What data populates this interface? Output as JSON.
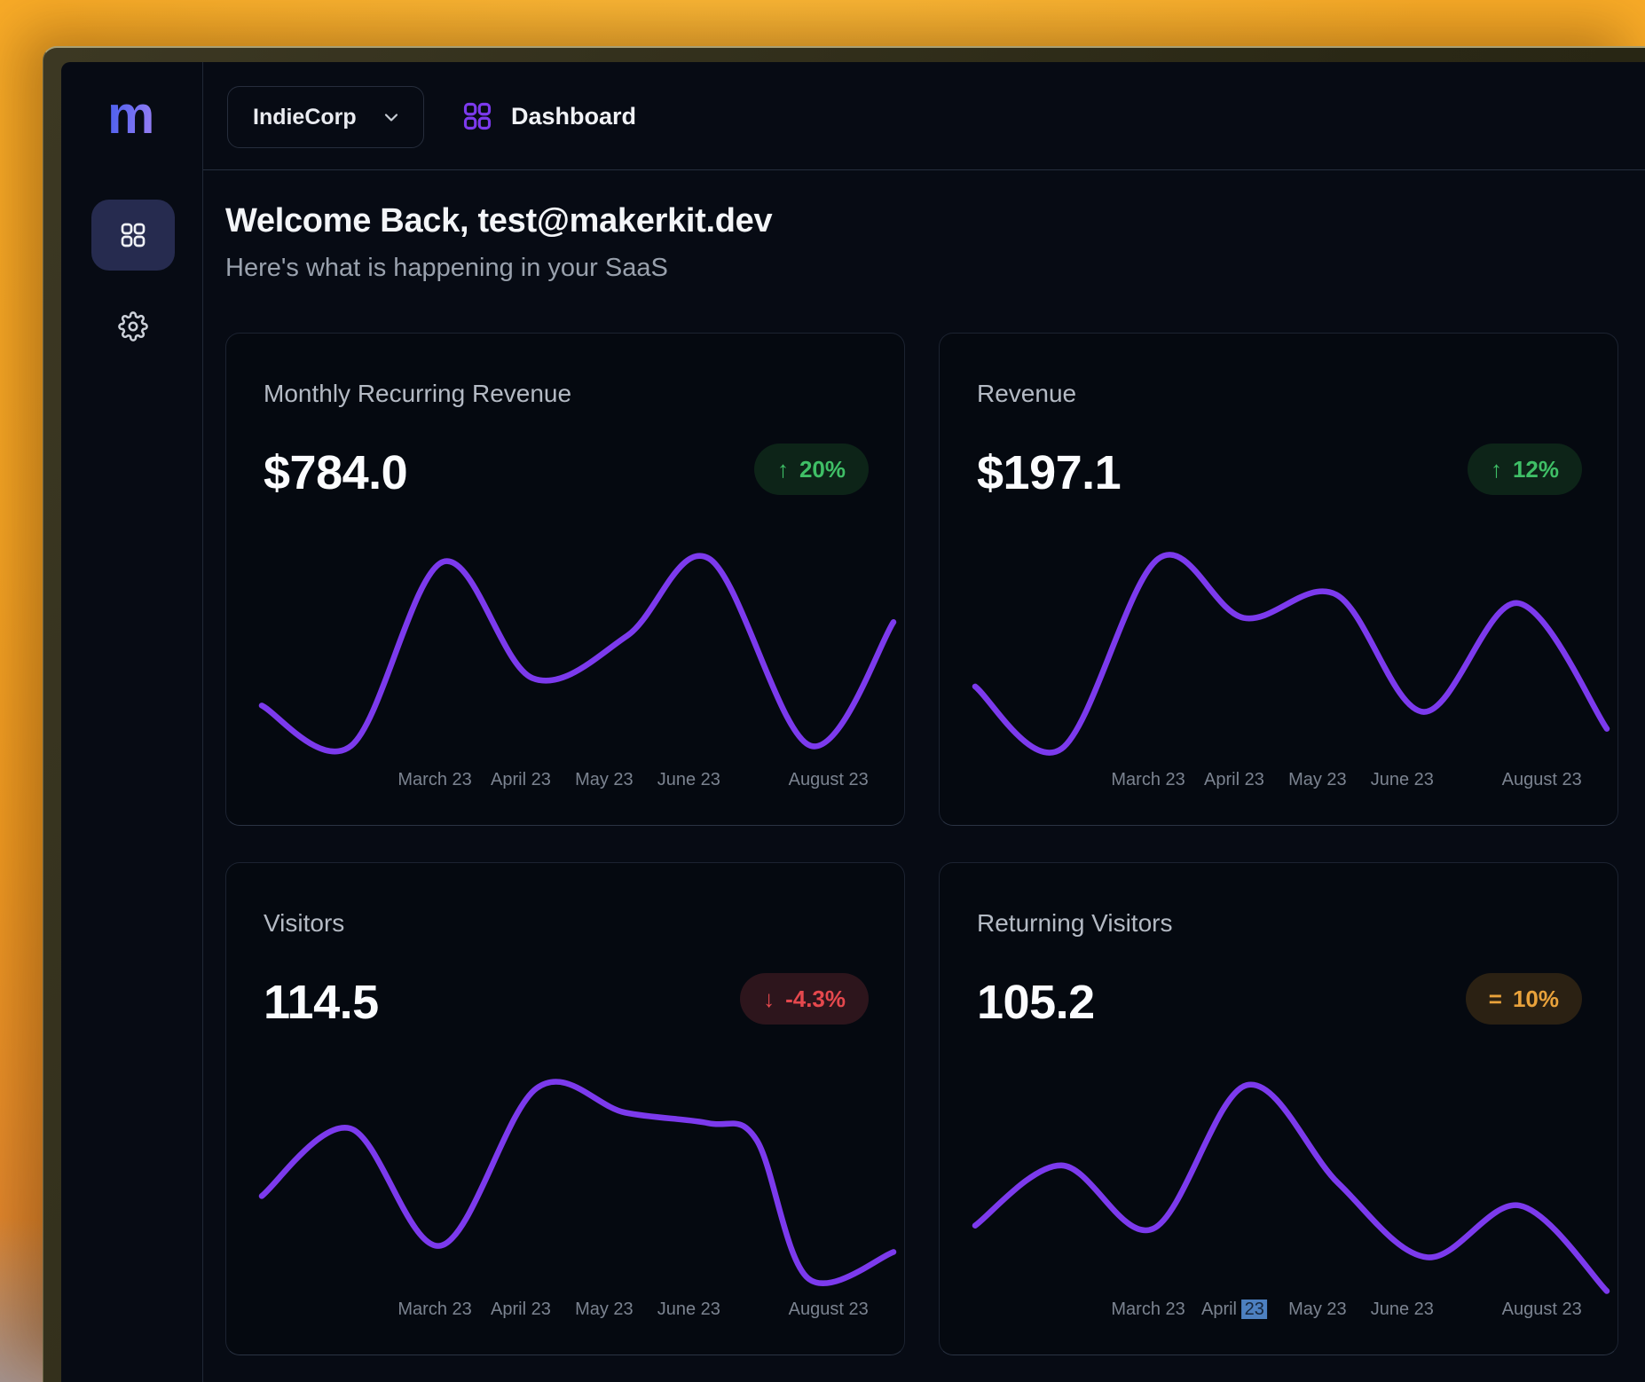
{
  "window": {
    "org_switcher_label": "IndieCorp",
    "nav_title": "Dashboard",
    "logo_letter": "m"
  },
  "welcome": {
    "heading": "Welcome Back, test@makerkit.dev",
    "subheading": "Here's what is happening in your SaaS"
  },
  "axis": {
    "positions_pct": [
      27.4,
      41.0,
      54.2,
      67.6,
      89.7
    ]
  },
  "colors": {
    "accent_purple": "#7c3aed",
    "logo_gradient": [
      "#5563ef",
      "#8e7bf3"
    ],
    "positive": "#3fbf66",
    "negative": "#e5484d",
    "neutral": "#e9a23b",
    "axis_selection_highlight": "#4d80c0"
  },
  "cards": [
    {
      "title": "Monthly Recurring Revenue",
      "value": "$784.0",
      "change": {
        "icon": "↑",
        "label": "20%",
        "type": "positive"
      },
      "x_labels": [
        "March 23",
        "April 23",
        "May 23",
        "June 23",
        "August 23"
      ],
      "chart_points": [
        [
          0,
          154
        ],
        [
          85,
          192
        ],
        [
          172,
          18
        ],
        [
          257,
          128
        ],
        [
          347,
          88
        ],
        [
          425,
          15
        ],
        [
          521,
          192
        ],
        [
          600,
          75
        ]
      ]
    },
    {
      "title": "Revenue",
      "value": "$197.1",
      "change": {
        "icon": "↑",
        "label": "12%",
        "type": "positive"
      },
      "x_labels": [
        "March 23",
        "April 23",
        "May 23",
        "June 23",
        "August 23"
      ],
      "chart_points": [
        [
          0,
          136
        ],
        [
          82,
          195
        ],
        [
          174,
          15
        ],
        [
          255,
          71
        ],
        [
          343,
          49
        ],
        [
          426,
          160
        ],
        [
          515,
          57
        ],
        [
          600,
          176
        ]
      ]
    },
    {
      "title": "Visitors",
      "value": "114.5",
      "change": {
        "icon": "↓",
        "label": "-4.3%",
        "type": "negative"
      },
      "x_labels": [
        "March 23",
        "April 23",
        "May 23",
        "June 23",
        "August 23"
      ],
      "chart_points": [
        [
          0,
          117
        ],
        [
          84,
          53
        ],
        [
          170,
          164
        ],
        [
          261,
          15
        ],
        [
          345,
          38
        ],
        [
          424,
          48
        ],
        [
          470,
          64
        ],
        [
          519,
          195
        ],
        [
          600,
          170
        ]
      ]
    },
    {
      "title": "Returning Visitors",
      "value": "105.2",
      "change": {
        "icon": "=",
        "label": "10%",
        "type": "neutral"
      },
      "x_labels": [
        "March 23",
        "April 23",
        "May 23",
        "June 23",
        "August 23"
      ],
      "selection": {
        "label_index": 1,
        "prefix": "April ",
        "selected": "23"
      },
      "chart_points": [
        [
          0,
          145
        ],
        [
          82,
          88
        ],
        [
          169,
          148
        ],
        [
          258,
          12
        ],
        [
          345,
          105
        ],
        [
          429,
          175
        ],
        [
          517,
          126
        ],
        [
          600,
          207
        ]
      ]
    }
  ],
  "chart_data": [
    {
      "type": "line",
      "title": "Monthly Recurring Revenue",
      "x_tick_labels": [
        "March 23",
        "April 23",
        "May 23",
        "June 23",
        "August 23"
      ],
      "values_rel_0_100": [
        30,
        13,
        92,
        42,
        60,
        93,
        13,
        66
      ],
      "legend": "none",
      "grid": false
    },
    {
      "type": "line",
      "title": "Revenue",
      "x_tick_labels": [
        "March 23",
        "April 23",
        "May 23",
        "June 23",
        "August 23"
      ],
      "values_rel_0_100": [
        38,
        11,
        93,
        68,
        78,
        27,
        74,
        20
      ],
      "legend": "none",
      "grid": false
    },
    {
      "type": "line",
      "title": "Visitors",
      "x_tick_labels": [
        "March 23",
        "April 23",
        "May 23",
        "June 23",
        "August 23"
      ],
      "values_rel_0_100": [
        47,
        76,
        25,
        93,
        83,
        78,
        71,
        11,
        23
      ],
      "legend": "none",
      "grid": false
    },
    {
      "type": "line",
      "title": "Returning Visitors",
      "x_tick_labels": [
        "March 23",
        "April 23",
        "May 23",
        "June 23",
        "August 23"
      ],
      "values_rel_0_100": [
        34,
        60,
        33,
        95,
        52,
        20,
        43,
        6
      ],
      "legend": "none",
      "grid": false
    }
  ]
}
